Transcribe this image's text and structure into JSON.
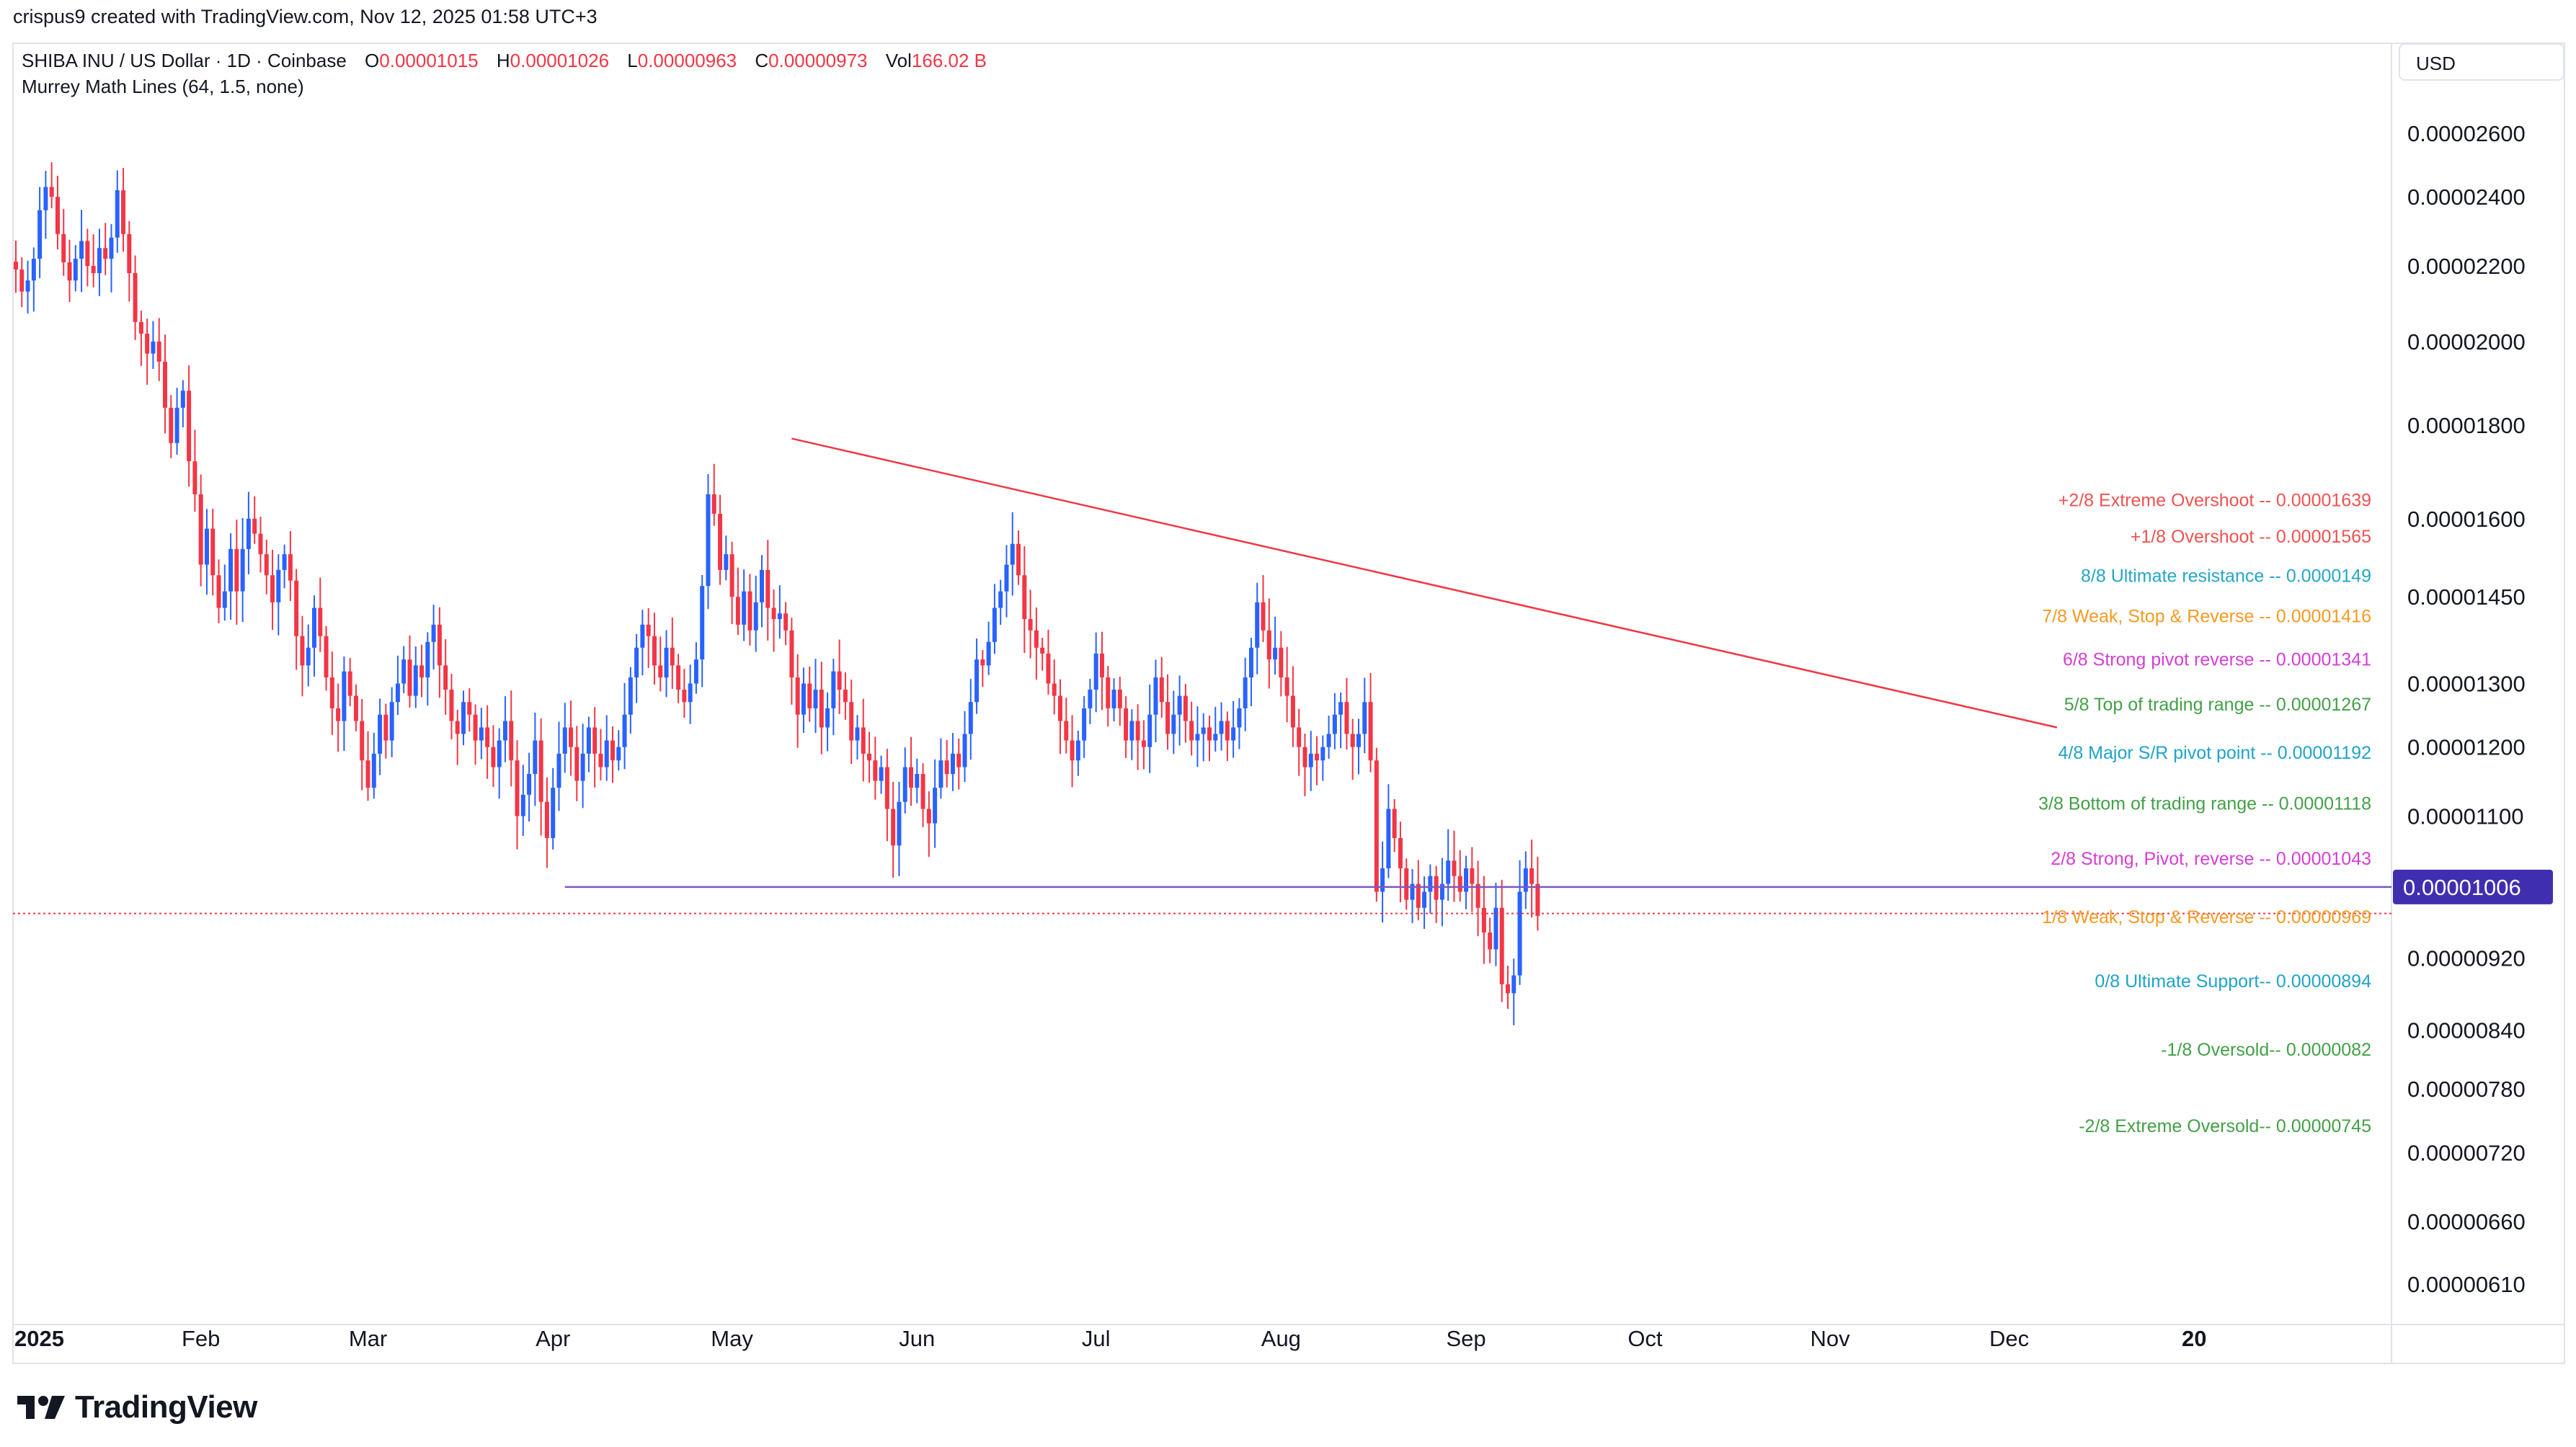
{
  "header": {
    "attribution": "crispus9 created with TradingView.com, Nov 12, 2025 01:58 UTC+3",
    "symbol": "SHIBA INU / US Dollar · 1D · Coinbase",
    "open_label": "O",
    "open": "0.00001015",
    "high_label": "H",
    "high": "0.00001026",
    "low_label": "L",
    "low": "0.00000963",
    "close_label": "C",
    "close": "0.00000973",
    "vol_label": "Vol",
    "volume": "166.02 B",
    "indicator": "Murrey Math Lines (64, 1.5, none)",
    "currency": "USD"
  },
  "brand": {
    "name": "TradingView"
  },
  "colors": {
    "up": "#2962ff",
    "down": "#f23645",
    "trendline": "#f23645",
    "support": "#7e57c2",
    "price_tag": "#3f2fb0"
  },
  "chart_data": {
    "type": "candlestick",
    "title": "SHIBA INU / US Dollar · 1D · Coinbase",
    "y_scale": "log",
    "ylim": [
      5.9e-06,
      2.8e-05
    ],
    "y_ticks": [
      "0.00002600",
      "0.00002400",
      "0.00002200",
      "0.00002000",
      "0.00001800",
      "0.00001600",
      "0.00001450",
      "0.00001300",
      "0.00001200",
      "0.00001100",
      "0.00000920",
      "0.00000840",
      "0.00000780",
      "0.00000720",
      "0.00000660",
      "0.00000610"
    ],
    "x_ticks": [
      {
        "label": "2025",
        "day": 0,
        "bold": true
      },
      {
        "label": "Feb",
        "day": 31
      },
      {
        "label": "Mar",
        "day": 59
      },
      {
        "label": "Apr",
        "day": 90
      },
      {
        "label": "May",
        "day": 120
      },
      {
        "label": "Jun",
        "day": 151
      },
      {
        "label": "Jul",
        "day": 181
      },
      {
        "label": "Aug",
        "day": 212
      },
      {
        "label": "Sep",
        "day": 243
      },
      {
        "label": "Oct",
        "day": 273
      },
      {
        "label": "Nov",
        "day": 304
      },
      {
        "label": "Dec",
        "day": 334
      },
      {
        "label": "20",
        "day": 365,
        "bold": true
      }
    ],
    "closes": [
      2.19e-05,
      2.13e-05,
      2.16e-05,
      2.22e-05,
      2.36e-05,
      2.43e-05,
      2.4e-05,
      2.29e-05,
      2.21e-05,
      2.16e-05,
      2.22e-05,
      2.27e-05,
      2.2e-05,
      2.18e-05,
      2.25e-05,
      2.22e-05,
      2.28e-05,
      2.42e-05,
      2.29e-05,
      2.18e-05,
      2.05e-05,
      2.02e-05,
      1.97e-05,
      2e-05,
      1.95e-05,
      1.84e-05,
      1.76e-05,
      1.84e-05,
      1.88e-05,
      1.72e-05,
      1.65e-05,
      1.51e-05,
      1.58e-05,
      1.49e-05,
      1.43e-05,
      1.46e-05,
      1.54e-05,
      1.46e-05,
      1.54e-05,
      1.6e-05,
      1.57e-05,
      1.53e-05,
      1.49e-05,
      1.44e-05,
      1.5e-05,
      1.53e-05,
      1.48e-05,
      1.38e-05,
      1.33e-05,
      1.36e-05,
      1.43e-05,
      1.38e-05,
      1.31e-05,
      1.26e-05,
      1.24e-05,
      1.32e-05,
      1.28e-05,
      1.24e-05,
      1.18e-05,
      1.14e-05,
      1.19e-05,
      1.25e-05,
      1.21e-05,
      1.27e-05,
      1.3e-05,
      1.34e-05,
      1.28e-05,
      1.33e-05,
      1.31e-05,
      1.37e-05,
      1.4e-05,
      1.33e-05,
      1.29e-05,
      1.24e-05,
      1.22e-05,
      1.27e-05,
      1.25e-05,
      1.21e-05,
      1.23e-05,
      1.2e-05,
      1.17e-05,
      1.21e-05,
      1.24e-05,
      1.18e-05,
      1.1e-05,
      1.13e-05,
      1.16e-05,
      1.21e-05,
      1.12e-05,
      1.07e-05,
      1.14e-05,
      1.19e-05,
      1.23e-05,
      1.2e-05,
      1.15e-05,
      1.19e-05,
      1.23e-05,
      1.19e-05,
      1.17e-05,
      1.21e-05,
      1.18e-05,
      1.2e-05,
      1.25e-05,
      1.31e-05,
      1.36e-05,
      1.4e-05,
      1.38e-05,
      1.33e-05,
      1.31e-05,
      1.36e-05,
      1.33e-05,
      1.29e-05,
      1.27e-05,
      1.3e-05,
      1.34e-05,
      1.47e-05,
      1.65e-05,
      1.61e-05,
      1.5e-05,
      1.53e-05,
      1.45e-05,
      1.4e-05,
      1.46e-05,
      1.39e-05,
      1.44e-05,
      1.5e-05,
      1.43e-05,
      1.41e-05,
      1.42e-05,
      1.39e-05,
      1.31e-05,
      1.25e-05,
      1.3e-05,
      1.26e-05,
      1.29e-05,
      1.23e-05,
      1.26e-05,
      1.32e-05,
      1.29e-05,
      1.27e-05,
      1.21e-05,
      1.23e-05,
      1.19e-05,
      1.18e-05,
      1.15e-05,
      1.17e-05,
      1.11e-05,
      1.06e-05,
      1.12e-05,
      1.17e-05,
      1.14e-05,
      1.16e-05,
      1.11e-05,
      1.09e-05,
      1.14e-05,
      1.18e-05,
      1.16e-05,
      1.19e-05,
      1.17e-05,
      1.22e-05,
      1.27e-05,
      1.34e-05,
      1.33e-05,
      1.37e-05,
      1.43e-05,
      1.46e-05,
      1.51e-05,
      1.55e-05,
      1.49e-05,
      1.41e-05,
      1.39e-05,
      1.36e-05,
      1.35e-05,
      1.3e-05,
      1.28e-05,
      1.24e-05,
      1.21e-05,
      1.18e-05,
      1.21e-05,
      1.26e-05,
      1.29e-05,
      1.35e-05,
      1.31e-05,
      1.26e-05,
      1.29e-05,
      1.26e-05,
      1.21e-05,
      1.24e-05,
      1.21e-05,
      1.2e-05,
      1.25e-05,
      1.31e-05,
      1.27e-05,
      1.22e-05,
      1.25e-05,
      1.28e-05,
      1.24e-05,
      1.21e-05,
      1.22e-05,
      1.23e-05,
      1.21e-05,
      1.22e-05,
      1.24e-05,
      1.21e-05,
      1.23e-05,
      1.26e-05,
      1.31e-05,
      1.36e-05,
      1.44e-05,
      1.39e-05,
      1.34e-05,
      1.36e-05,
      1.31e-05,
      1.28e-05,
      1.23e-05,
      1.2e-05,
      1.17e-05,
      1.19e-05,
      1.18e-05,
      1.2e-05,
      1.22e-05,
      1.25e-05,
      1.27e-05,
      1.22e-05,
      1.2e-05,
      1.22e-05,
      1.27e-05,
      1.18e-05,
      1e-05,
      1.03e-05,
      1.11e-05,
      1.07e-05,
      1.03e-05,
      9.9e-06,
      1.01e-05,
      9.8e-06,
      1e-05,
      1.02e-05,
      9.9e-06,
      1.01e-05,
      1.04e-05,
      1.02e-05,
      1e-05,
      1.03e-05,
      1.01e-05,
      9.8e-06,
      9.5e-06,
      9.3e-06,
      9.8e-06,
      8.9e-06,
      8.8e-06,
      9e-06,
      1e-05,
      1.03e-05,
      1.01e-05,
      9.7e-06
    ],
    "trendline": {
      "from": {
        "day": 130,
        "price": 1.77e-05
      },
      "to": {
        "day": 342,
        "price": 1.23e-05
      }
    },
    "horizontal_support": {
      "from_day": 92,
      "price": 1.006e-05
    },
    "last_price": {
      "value": "0.00001006",
      "price": 1.006e-05
    },
    "current_line": {
      "price": 9.73e-06
    },
    "murrey_levels": [
      {
        "label": "+2/8 Extreme Overshoot --  0.00001639",
        "price": 1.639e-05,
        "color": "#ef5350"
      },
      {
        "label": "+1/8 Overshoot --  0.00001565",
        "price": 1.565e-05,
        "color": "#ef5350"
      },
      {
        "label": "8/8 Ultimate resistance --  0.0000149",
        "price": 1.49e-05,
        "color": "#26a6c6"
      },
      {
        "label": "7/8 Weak, Stop & Reverse --  0.00001416",
        "price": 1.416e-05,
        "color": "#f59a23"
      },
      {
        "label": "6/8 Strong pivot reverse --  0.00001341",
        "price": 1.341e-05,
        "color": "#d63ed6"
      },
      {
        "label": "5/8 Top of trading range --  0.00001267",
        "price": 1.267e-05,
        "color": "#43a047"
      },
      {
        "label": "4/8 Major S/R pivot point --  0.00001192",
        "price": 1.192e-05,
        "color": "#1fa3c9"
      },
      {
        "label": "3/8 Bottom of trading range --  0.00001118",
        "price": 1.118e-05,
        "color": "#43a047"
      },
      {
        "label": "2/8 Strong, Pivot, reverse --  0.00001043",
        "price": 1.043e-05,
        "color": "#d63ed6"
      },
      {
        "label": "1/8 Weak, Stop & Reverse --  0.00000969",
        "price": 9.69e-06,
        "color": "#f59a23"
      },
      {
        "label": "0/8 Ultimate Support--  0.00000894",
        "price": 8.94e-06,
        "color": "#1fa3c9"
      },
      {
        "label": "-1/8 Oversold--  0.0000082",
        "price": 8.2e-06,
        "color": "#43a047"
      },
      {
        "label": "-2/8 Extreme Oversold--  0.00000745",
        "price": 7.45e-06,
        "color": "#43a047"
      }
    ]
  }
}
